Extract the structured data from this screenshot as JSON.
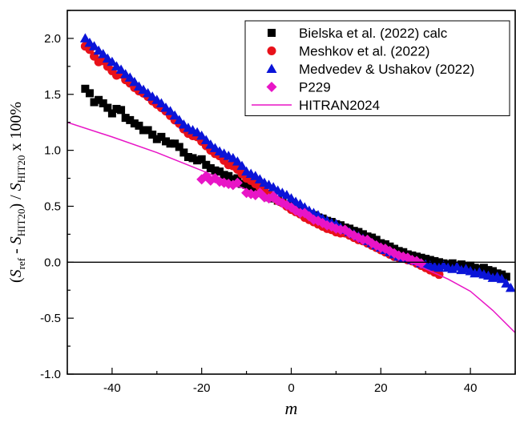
{
  "chart_data": {
    "type": "scatter",
    "xlabel": "m",
    "ylabel": {
      "open": "(",
      "s1": "S",
      "s1_sub": "ref",
      "minus": " - ",
      "s2": "S",
      "s2_sub": "HIT20",
      "mid": ") / ",
      "s3": "S",
      "s3_sub": "HIT20",
      "tail": " x 100%"
    },
    "xlim": [
      -50,
      50
    ],
    "ylim": [
      -1.0,
      2.25
    ],
    "xticks": [
      -40,
      -20,
      0,
      20,
      40
    ],
    "yticks": [
      -1.0,
      -0.5,
      0.0,
      0.5,
      1.0,
      1.5,
      2.0
    ],
    "xtick_labels": [
      "-40",
      "-20",
      "0",
      "20",
      "40"
    ],
    "ytick_labels": [
      "-1.0",
      "-0.5",
      "0.0",
      "0.5",
      "1.0",
      "1.5",
      "2.0"
    ],
    "zero_line": 0,
    "legend_position": "top-right",
    "series": [
      {
        "name": "Bielska et al. (2022) calc",
        "marker": "square",
        "color": "#000000",
        "x": [
          -46,
          -45,
          -44,
          -43,
          -42,
          -41,
          -40,
          -39,
          -38,
          -37,
          -36,
          -35,
          -34,
          -33,
          -32,
          -31,
          -30,
          -29,
          -28,
          -27,
          -26,
          -25,
          -24,
          -23,
          -22,
          -21,
          -20,
          -19,
          -18,
          -17,
          -16,
          -15,
          -14,
          -13,
          -12,
          -11,
          -10,
          -9,
          -8,
          -7,
          -6,
          -5,
          -4,
          -3,
          -2,
          -1,
          0,
          1,
          2,
          3,
          4,
          5,
          6,
          7,
          8,
          9,
          10,
          11,
          12,
          13,
          14,
          15,
          16,
          17,
          18,
          19,
          20,
          21,
          22,
          23,
          24,
          25,
          26,
          27,
          28,
          29,
          30,
          31,
          32,
          33,
          34,
          35,
          36,
          37,
          38,
          39,
          40,
          41,
          42,
          43,
          44,
          45,
          46,
          47,
          48
        ],
        "y": [
          1.55,
          1.51,
          1.43,
          1.45,
          1.42,
          1.38,
          1.33,
          1.37,
          1.36,
          1.29,
          1.27,
          1.24,
          1.22,
          1.18,
          1.18,
          1.14,
          1.1,
          1.12,
          1.08,
          1.06,
          1.06,
          1.03,
          0.98,
          0.94,
          0.93,
          0.91,
          0.92,
          0.87,
          0.84,
          0.82,
          0.81,
          0.78,
          0.77,
          0.74,
          0.75,
          0.7,
          0.69,
          0.67,
          0.64,
          0.62,
          0.61,
          0.58,
          0.57,
          0.55,
          0.54,
          0.52,
          0.5,
          0.49,
          0.47,
          0.45,
          0.43,
          0.42,
          0.4,
          0.39,
          0.37,
          0.36,
          0.34,
          0.33,
          0.31,
          0.3,
          0.28,
          0.27,
          0.25,
          0.23,
          0.22,
          0.2,
          0.17,
          0.16,
          0.14,
          0.12,
          0.1,
          0.09,
          0.07,
          0.06,
          0.05,
          0.04,
          0.03,
          0.02,
          0.01,
          0.0,
          -0.01,
          -0.02,
          -0.01,
          -0.03,
          -0.02,
          -0.04,
          -0.03,
          -0.05,
          -0.06,
          -0.05,
          -0.07,
          -0.08,
          -0.1,
          -0.11,
          -0.13
        ]
      },
      {
        "name": "Meshkov et al. (2022)",
        "marker": "circle",
        "color": "#e8111a",
        "x": [
          -46,
          -45,
          -44,
          -43,
          -42,
          -41,
          -40,
          -39,
          -38,
          -37,
          -36,
          -35,
          -34,
          -33,
          -32,
          -31,
          -30,
          -29,
          -28,
          -27,
          -26,
          -25,
          -24,
          -23,
          -22,
          -21,
          -20,
          -19,
          -18,
          -17,
          -16,
          -15,
          -14,
          -13,
          -12,
          -11,
          -10,
          -9,
          -8,
          -7,
          -6,
          -5,
          -4,
          -3,
          -2,
          -1,
          0,
          1,
          2,
          3,
          4,
          5,
          6,
          7,
          8,
          9,
          10,
          11,
          12,
          13,
          14,
          15,
          16,
          17,
          18,
          19,
          20,
          21,
          22,
          23,
          24,
          25,
          26,
          27,
          28,
          29,
          30,
          31,
          32,
          33
        ],
        "y": [
          1.93,
          1.9,
          1.84,
          1.79,
          1.8,
          1.75,
          1.71,
          1.67,
          1.68,
          1.63,
          1.6,
          1.56,
          1.53,
          1.51,
          1.48,
          1.44,
          1.41,
          1.38,
          1.35,
          1.31,
          1.27,
          1.24,
          1.19,
          1.15,
          1.13,
          1.12,
          1.08,
          1.04,
          1.0,
          0.97,
          0.95,
          0.91,
          0.87,
          0.86,
          0.83,
          0.79,
          0.75,
          0.73,
          0.7,
          0.67,
          0.64,
          0.61,
          0.58,
          0.55,
          0.53,
          0.5,
          0.47,
          0.45,
          0.43,
          0.4,
          0.38,
          0.36,
          0.34,
          0.32,
          0.3,
          0.29,
          0.27,
          0.26,
          0.26,
          0.24,
          0.22,
          0.2,
          0.19,
          0.17,
          0.15,
          0.13,
          0.11,
          0.09,
          0.07,
          0.05,
          0.04,
          0.04,
          0.02,
          0.01,
          -0.01,
          -0.03,
          -0.05,
          -0.07,
          -0.09,
          -0.11
        ]
      },
      {
        "name": "Medvedev & Ushakov (2022)",
        "marker": "triangle",
        "color": "#0a14d8",
        "x": [
          -46,
          -45,
          -44,
          -43,
          -42,
          -41,
          -40,
          -39,
          -38,
          -37,
          -36,
          -35,
          -34,
          -33,
          -32,
          -31,
          -30,
          -29,
          -28,
          -27,
          -26,
          -25,
          -24,
          -23,
          -22,
          -21,
          -20,
          -19,
          -18,
          -17,
          -16,
          -15,
          -14,
          -13,
          -12,
          -11,
          -10,
          -9,
          -8,
          -7,
          -6,
          -5,
          -4,
          -3,
          -2,
          -1,
          0,
          1,
          2,
          3,
          4,
          5,
          6,
          7,
          8,
          9,
          10,
          11,
          12,
          13,
          14,
          15,
          16,
          17,
          18,
          19,
          20,
          21,
          22,
          23,
          24,
          25,
          26,
          27,
          28,
          29,
          30,
          31,
          32,
          33,
          34,
          35,
          36,
          37,
          38,
          39,
          40,
          41,
          42,
          43,
          44,
          45,
          46,
          47,
          48,
          49
        ],
        "y": [
          2.0,
          1.96,
          1.93,
          1.89,
          1.86,
          1.82,
          1.79,
          1.75,
          1.72,
          1.68,
          1.65,
          1.61,
          1.57,
          1.54,
          1.51,
          1.48,
          1.45,
          1.42,
          1.38,
          1.35,
          1.31,
          1.27,
          1.23,
          1.2,
          1.18,
          1.16,
          1.13,
          1.09,
          1.05,
          1.02,
          0.99,
          0.97,
          0.95,
          0.93,
          0.9,
          0.86,
          0.81,
          0.79,
          0.77,
          0.74,
          0.71,
          0.69,
          0.67,
          0.64,
          0.62,
          0.6,
          0.57,
          0.54,
          0.52,
          0.49,
          0.46,
          0.44,
          0.42,
          0.39,
          0.37,
          0.35,
          0.34,
          0.31,
          0.29,
          0.27,
          0.25,
          0.23,
          0.21,
          0.19,
          0.17,
          0.15,
          0.13,
          0.11,
          0.09,
          0.07,
          0.05,
          0.04,
          0.03,
          0.02,
          0.01,
          -0.01,
          -0.02,
          -0.03,
          -0.04,
          -0.05,
          -0.03,
          -0.05,
          -0.06,
          -0.04,
          -0.07,
          -0.06,
          -0.08,
          -0.1,
          -0.09,
          -0.11,
          -0.12,
          -0.14,
          -0.13,
          -0.15,
          -0.19,
          -0.23
        ]
      },
      {
        "name": "P229",
        "marker": "diamond",
        "color": "#e815c6",
        "x": [
          -20,
          -19,
          -18,
          -17,
          -16,
          -15,
          -14,
          -13,
          -12,
          -10,
          -9,
          -8,
          -7,
          -6,
          -5,
          -4,
          -3,
          -2,
          -1,
          0,
          1,
          2,
          3,
          4,
          5,
          6,
          7,
          8,
          9,
          10,
          11,
          12,
          13,
          14,
          15,
          16,
          17,
          18,
          19,
          20,
          21,
          22,
          23,
          24,
          25,
          26,
          27,
          28,
          29
        ],
        "y": [
          0.74,
          0.77,
          0.73,
          0.75,
          0.72,
          0.71,
          0.7,
          0.69,
          0.71,
          0.62,
          0.61,
          0.6,
          0.62,
          0.58,
          0.57,
          0.59,
          0.55,
          0.53,
          0.51,
          0.49,
          0.46,
          0.44,
          0.44,
          0.41,
          0.38,
          0.37,
          0.35,
          0.33,
          0.32,
          0.3,
          0.29,
          0.29,
          0.26,
          0.24,
          0.22,
          0.2,
          0.2,
          0.17,
          0.15,
          0.13,
          0.12,
          0.1,
          0.08,
          0.06,
          0.05,
          0.04,
          0.02,
          0.01,
          -0.01
        ]
      },
      {
        "name": "HITRAN2024",
        "marker": "line",
        "color": "#e815c6",
        "x": [
          -50,
          -40,
          -30,
          -20,
          -10,
          0,
          10,
          20,
          30,
          35,
          40,
          45,
          50
        ],
        "y": [
          1.25,
          1.12,
          0.98,
          0.82,
          0.65,
          0.47,
          0.3,
          0.12,
          -0.06,
          -0.15,
          -0.26,
          -0.43,
          -0.63
        ]
      }
    ]
  }
}
